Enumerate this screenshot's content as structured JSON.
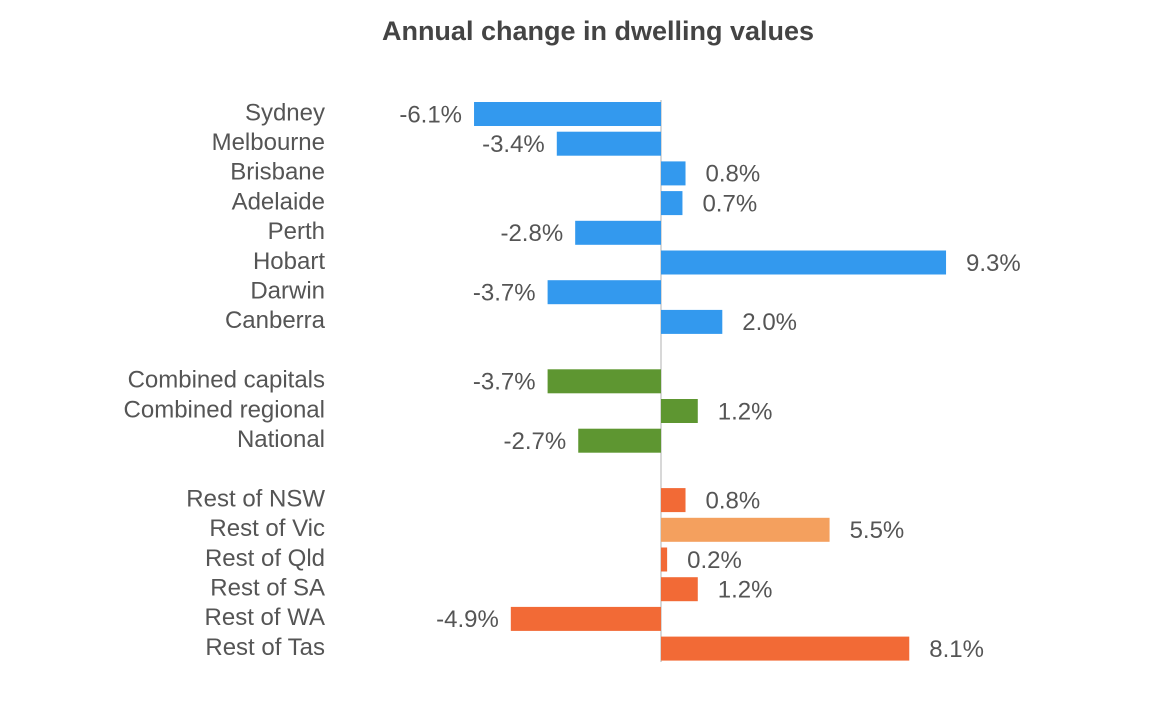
{
  "chart_data": {
    "type": "hbar",
    "title": "Annual change in dwelling values",
    "categories": [
      "Sydney",
      "Melbourne",
      "Brisbane",
      "Adelaide",
      "Perth",
      "Hobart",
      "Darwin",
      "Canberra",
      null,
      "Combined capitals",
      "Combined regional",
      "National",
      null,
      "Rest of NSW",
      "Rest of Vic",
      "Rest of Qld",
      "Rest of SA",
      "Rest of WA",
      "Rest of Tas"
    ],
    "values": [
      -6.1,
      -3.4,
      0.8,
      0.7,
      -2.8,
      9.3,
      -3.7,
      2.0,
      null,
      -3.7,
      1.2,
      -2.7,
      null,
      0.8,
      5.5,
      0.2,
      1.2,
      -4.9,
      8.1
    ],
    "value_labels": [
      "-6.1%",
      "-3.4%",
      "0.8%",
      "0.7%",
      "-2.8%",
      "9.3%",
      "-3.7%",
      "2.0%",
      null,
      "-3.7%",
      "1.2%",
      "-2.7%",
      null,
      "0.8%",
      "5.5%",
      "0.2%",
      "1.2%",
      "-4.9%",
      "8.1%"
    ],
    "colors": [
      "#3399ee",
      "#3399ee",
      "#3399ee",
      "#3399ee",
      "#3399ee",
      "#3399ee",
      "#3399ee",
      "#3399ee",
      null,
      "#5e9631",
      "#5e9631",
      "#5e9631",
      null,
      "#f26a36",
      "#f4a05e",
      "#f26a36",
      "#f26a36",
      "#f26a36",
      "#f26a36"
    ]
  }
}
